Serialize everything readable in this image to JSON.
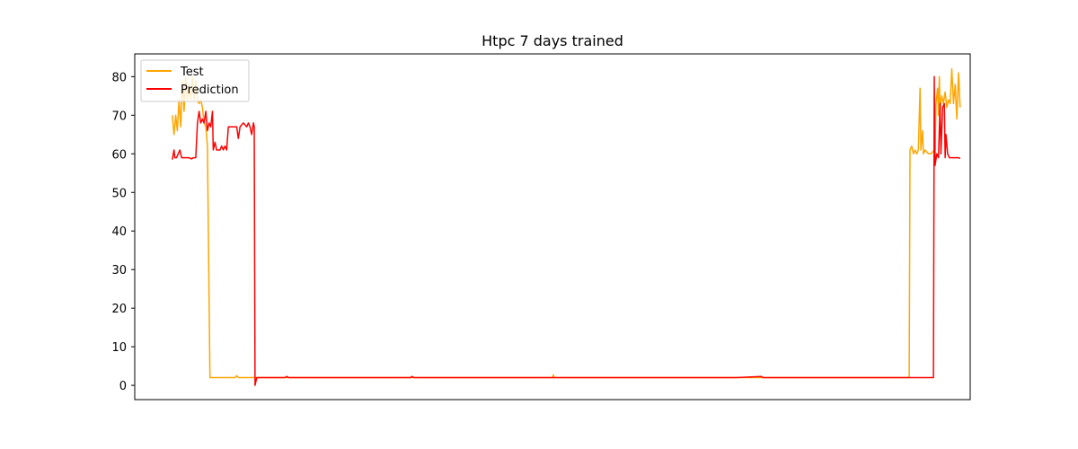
{
  "chart_data": {
    "type": "line",
    "title": "Htpc 7 days trained",
    "xlabel": "",
    "ylabel": "",
    "ylim": [
      -3.7,
      85.9
    ],
    "xlim": [
      0,
      1000
    ],
    "x_ticks_visible": false,
    "grid": false,
    "legend_position": "top-left",
    "yticks": [
      0,
      10,
      20,
      30,
      40,
      50,
      60,
      70,
      80
    ],
    "series": [
      {
        "name": "Test",
        "color": "#ffa500",
        "points": [
          [
            45,
            70
          ],
          [
            47,
            65
          ],
          [
            49,
            70
          ],
          [
            51,
            66
          ],
          [
            53,
            74
          ],
          [
            55,
            67
          ],
          [
            57,
            79
          ],
          [
            59,
            71
          ],
          [
            61,
            80
          ],
          [
            63,
            74
          ],
          [
            65,
            78
          ],
          [
            67,
            74
          ],
          [
            69,
            80
          ],
          [
            71,
            74
          ],
          [
            73,
            79
          ],
          [
            75,
            74
          ],
          [
            77,
            73
          ],
          [
            79,
            74
          ],
          [
            81,
            72
          ],
          [
            83,
            68
          ],
          [
            85,
            67
          ],
          [
            87,
            62
          ],
          [
            90,
            2
          ],
          [
            120,
            2
          ],
          [
            122,
            2.5
          ],
          [
            124,
            2
          ],
          [
            300,
            2
          ],
          [
            500,
            2
          ],
          [
            501,
            2.7
          ],
          [
            502,
            2
          ],
          [
            700,
            2
          ],
          [
            900,
            2
          ],
          [
            925,
            2
          ],
          [
            927,
            2.1
          ],
          [
            928,
            61
          ],
          [
            930,
            62
          ],
          [
            932,
            60
          ],
          [
            934,
            61
          ],
          [
            936,
            60
          ],
          [
            938,
            61
          ],
          [
            940,
            77
          ],
          [
            941,
            61
          ],
          [
            943,
            66
          ],
          [
            944,
            60
          ],
          [
            946,
            61
          ],
          [
            950,
            60
          ],
          [
            953,
            60
          ],
          [
            955,
            60.5
          ],
          [
            958,
            61
          ],
          [
            959,
            73
          ],
          [
            961,
            77
          ],
          [
            962,
            70
          ],
          [
            963,
            80
          ],
          [
            964,
            72
          ],
          [
            966,
            75
          ],
          [
            968,
            73
          ],
          [
            970,
            76
          ],
          [
            972,
            72
          ],
          [
            974,
            74
          ],
          [
            976,
            73
          ],
          [
            978,
            82
          ],
          [
            980,
            73
          ],
          [
            982,
            78
          ],
          [
            984,
            69
          ],
          [
            986,
            81
          ],
          [
            988,
            72
          ]
        ]
      },
      {
        "name": "Prediction",
        "color": "#ff0000",
        "points": [
          [
            45,
            58.5
          ],
          [
            47,
            61
          ],
          [
            48,
            59
          ],
          [
            50,
            59
          ],
          [
            52,
            60
          ],
          [
            54,
            61
          ],
          [
            56,
            59
          ],
          [
            60,
            59
          ],
          [
            65,
            59
          ],
          [
            68,
            58.7
          ],
          [
            70,
            59
          ],
          [
            73,
            59
          ],
          [
            75,
            68
          ],
          [
            77,
            71
          ],
          [
            79,
            68
          ],
          [
            81,
            69
          ],
          [
            83,
            68
          ],
          [
            85,
            71
          ],
          [
            87,
            66
          ],
          [
            89,
            68
          ],
          [
            91,
            67
          ],
          [
            93,
            71
          ],
          [
            94,
            61
          ],
          [
            96,
            63
          ],
          [
            98,
            61
          ],
          [
            102,
            61
          ],
          [
            104,
            62
          ],
          [
            106,
            61
          ],
          [
            108,
            62
          ],
          [
            110,
            61
          ],
          [
            112,
            67
          ],
          [
            114,
            67
          ],
          [
            118,
            67
          ],
          [
            122,
            67
          ],
          [
            124,
            64
          ],
          [
            126,
            67
          ],
          [
            130,
            68
          ],
          [
            134,
            67
          ],
          [
            136,
            68
          ],
          [
            138,
            67
          ],
          [
            140,
            65
          ],
          [
            142,
            68
          ],
          [
            143,
            67
          ],
          [
            144,
            0
          ],
          [
            146,
            2
          ],
          [
            150,
            2
          ],
          [
            180,
            2
          ],
          [
            182,
            2.3
          ],
          [
            184,
            2
          ],
          [
            330,
            2
          ],
          [
            332,
            2.3
          ],
          [
            334,
            2
          ],
          [
            500,
            2
          ],
          [
            720,
            2
          ],
          [
            750,
            2.3
          ],
          [
            752,
            2
          ],
          [
            800,
            2
          ],
          [
            955,
            2
          ],
          [
            956,
            2
          ],
          [
            957,
            80
          ],
          [
            958,
            57
          ],
          [
            960,
            60
          ],
          [
            962,
            59
          ],
          [
            964,
            73
          ],
          [
            965,
            60
          ],
          [
            967,
            72
          ],
          [
            969,
            73
          ],
          [
            970,
            59
          ],
          [
            971,
            65
          ],
          [
            973,
            60
          ],
          [
            975,
            59
          ],
          [
            978,
            59
          ],
          [
            982,
            59
          ],
          [
            986,
            59
          ],
          [
            988,
            58.8
          ]
        ]
      }
    ]
  }
}
